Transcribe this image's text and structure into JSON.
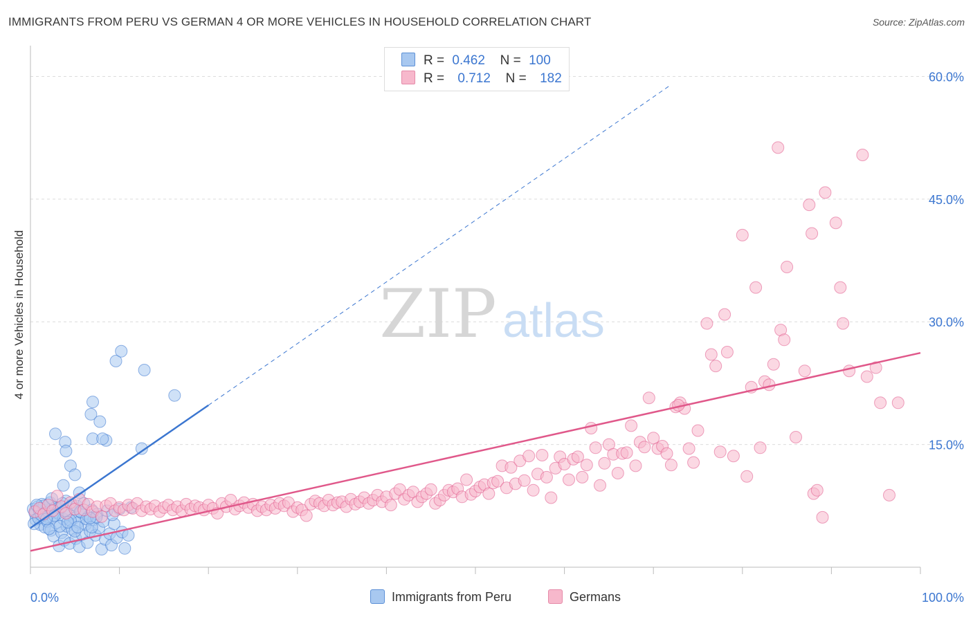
{
  "title": "IMMIGRANTS FROM PERU VS GERMAN 4 OR MORE VEHICLES IN HOUSEHOLD CORRELATION CHART",
  "source": "Source: ZipAtlas.com",
  "watermark": {
    "zip": "ZIP",
    "atlas": "atlas"
  },
  "legend": {
    "rows": [
      {
        "r_label": "R =",
        "r_value": "0.462",
        "n_label": "N =",
        "n_value": "100",
        "color": "#a8c8f0"
      },
      {
        "r_label": "R =",
        "r_value": "0.712",
        "n_label": "N =",
        "n_value": "182",
        "color": "#f7b8cc"
      }
    ]
  },
  "bottom_legend": [
    {
      "label": "Immigrants from Peru",
      "color": "#a8c8f0"
    },
    {
      "label": "Germans",
      "color": "#f7b8cc"
    }
  ],
  "chart_data": {
    "type": "scatter",
    "title": "IMMIGRANTS FROM PERU VS GERMAN 4 OR MORE VEHICLES IN HOUSEHOLD CORRELATION CHART",
    "xlabel": "",
    "ylabel": "4 or more Vehicles in Household",
    "xlim": [
      0,
      100
    ],
    "ylim": [
      0,
      63
    ],
    "x_tick_labels": [
      "0.0%",
      "100.0%"
    ],
    "y_ticks": [
      15,
      30,
      45,
      60
    ],
    "y_tick_labels": [
      "15.0%",
      "30.0%",
      "45.0%",
      "60.0%"
    ],
    "grid": true,
    "legend_position": "top-center",
    "series": [
      {
        "name": "Immigrants from Peru",
        "color": "#3b76d0",
        "fill": "#a8c8f0",
        "trend": {
          "x0": 0,
          "y0": 4.8,
          "x1": 20,
          "y1": 19.8,
          "dashed_to_x": 72,
          "dashed_to_y": 59
        },
        "points": [
          [
            0.3,
            7.1
          ],
          [
            0.5,
            6.6
          ],
          [
            0.6,
            5.8
          ],
          [
            0.8,
            7.4
          ],
          [
            1.0,
            6.9
          ],
          [
            1.1,
            5.2
          ],
          [
            1.3,
            7.7
          ],
          [
            1.4,
            6.3
          ],
          [
            1.6,
            4.9
          ],
          [
            1.7,
            7.0
          ],
          [
            1.9,
            5.6
          ],
          [
            2.0,
            6.8
          ],
          [
            2.2,
            7.9
          ],
          [
            2.3,
            4.5
          ],
          [
            2.5,
            6.1
          ],
          [
            2.6,
            3.8
          ],
          [
            2.8,
            7.3
          ],
          [
            2.9,
            5.4
          ],
          [
            3.1,
            6.6
          ],
          [
            3.2,
            2.6
          ],
          [
            3.4,
            7.2
          ],
          [
            3.5,
            4.2
          ],
          [
            3.7,
            5.9
          ],
          [
            3.8,
            3.3
          ],
          [
            4.0,
            8.1
          ],
          [
            4.1,
            5.0
          ],
          [
            4.3,
            6.4
          ],
          [
            4.4,
            2.9
          ],
          [
            4.6,
            7.6
          ],
          [
            4.7,
            4.6
          ],
          [
            4.9,
            6.0
          ],
          [
            5.1,
            3.5
          ],
          [
            5.2,
            7.5
          ],
          [
            5.4,
            5.5
          ],
          [
            5.5,
            2.5
          ],
          [
            5.7,
            6.7
          ],
          [
            5.8,
            4.0
          ],
          [
            6.0,
            7.8
          ],
          [
            6.2,
            5.2
          ],
          [
            6.4,
            3.0
          ],
          [
            6.5,
            6.2
          ],
          [
            6.7,
            4.4
          ],
          [
            6.9,
            7.0
          ],
          [
            7.1,
            5.8
          ],
          [
            7.3,
            3.9
          ],
          [
            7.5,
            6.5
          ],
          [
            7.7,
            4.8
          ],
          [
            8.0,
            2.2
          ],
          [
            8.2,
            5.6
          ],
          [
            8.4,
            3.4
          ],
          [
            8.6,
            6.9
          ],
          [
            8.9,
            4.1
          ],
          [
            9.1,
            2.7
          ],
          [
            9.4,
            5.3
          ],
          [
            9.7,
            3.6
          ],
          [
            10.0,
            7.1
          ],
          [
            10.3,
            4.3
          ],
          [
            10.6,
            2.3
          ],
          [
            11.0,
            3.9
          ],
          [
            11.3,
            7.3
          ],
          [
            0.4,
            5.3
          ],
          [
            0.9,
            6.0
          ],
          [
            1.5,
            7.5
          ],
          [
            2.1,
            4.7
          ],
          [
            2.7,
            6.3
          ],
          [
            3.3,
            5.0
          ],
          [
            3.9,
            6.9
          ],
          [
            4.5,
            5.7
          ],
          [
            5.0,
            4.4
          ],
          [
            5.6,
            6.8
          ],
          [
            6.3,
            5.9
          ],
          [
            6.9,
            4.9
          ],
          [
            7.4,
            6.1
          ],
          [
            2.4,
            8.4
          ],
          [
            3.6,
            7.8
          ],
          [
            1.2,
            6.4
          ],
          [
            0.7,
            7.6
          ],
          [
            1.8,
            5.9
          ],
          [
            4.2,
            5.5
          ],
          [
            5.3,
            4.9
          ],
          [
            2.8,
            16.3
          ],
          [
            3.9,
            15.3
          ],
          [
            4.0,
            14.2
          ],
          [
            4.5,
            12.4
          ],
          [
            5.0,
            11.3
          ],
          [
            5.5,
            9.1
          ],
          [
            3.7,
            10.0
          ],
          [
            7.0,
            20.2
          ],
          [
            6.8,
            18.7
          ],
          [
            7.0,
            15.7
          ],
          [
            8.5,
            15.5
          ],
          [
            8.1,
            15.7
          ],
          [
            7.8,
            17.8
          ],
          [
            9.6,
            25.2
          ],
          [
            10.2,
            26.4
          ],
          [
            12.8,
            24.1
          ],
          [
            16.2,
            21.0
          ],
          [
            12.5,
            14.5
          ],
          [
            6.7,
            6.0
          ],
          [
            9.2,
            6.4
          ]
        ]
      },
      {
        "name": "Germans",
        "color": "#e0588a",
        "fill": "#f7b8cc",
        "trend": {
          "x0": 0,
          "y0": 2.0,
          "x1": 100,
          "y1": 26.2
        },
        "points": [
          [
            0.5,
            6.8
          ],
          [
            1.0,
            7.2
          ],
          [
            1.5,
            6.5
          ],
          [
            2.0,
            7.6
          ],
          [
            2.5,
            6.9
          ],
          [
            3.0,
            8.7
          ],
          [
            3.5,
            7.4
          ],
          [
            4.0,
            6.6
          ],
          [
            4.5,
            7.9
          ],
          [
            5.0,
            7.1
          ],
          [
            5.5,
            8.3
          ],
          [
            6.0,
            7.0
          ],
          [
            6.5,
            7.7
          ],
          [
            7.0,
            6.8
          ],
          [
            7.5,
            7.4
          ],
          [
            8.0,
            6.2
          ],
          [
            8.5,
            7.5
          ],
          [
            9.0,
            7.8
          ],
          [
            9.5,
            6.9
          ],
          [
            10.0,
            7.3
          ],
          [
            10.5,
            7.0
          ],
          [
            11.0,
            7.6
          ],
          [
            11.5,
            7.2
          ],
          [
            12.0,
            7.8
          ],
          [
            12.5,
            6.9
          ],
          [
            13.0,
            7.4
          ],
          [
            13.5,
            7.1
          ],
          [
            14.0,
            7.5
          ],
          [
            14.5,
            6.8
          ],
          [
            15.0,
            7.3
          ],
          [
            15.5,
            7.6
          ],
          [
            16.0,
            7.0
          ],
          [
            16.5,
            7.4
          ],
          [
            17.0,
            6.9
          ],
          [
            17.5,
            7.7
          ],
          [
            18.0,
            7.1
          ],
          [
            18.5,
            7.5
          ],
          [
            19.0,
            7.3
          ],
          [
            19.5,
            7.0
          ],
          [
            20.0,
            7.6
          ],
          [
            20.5,
            7.2
          ],
          [
            21.0,
            6.6
          ],
          [
            21.5,
            7.8
          ],
          [
            22.0,
            7.4
          ],
          [
            22.5,
            8.2
          ],
          [
            23.0,
            7.1
          ],
          [
            23.5,
            7.5
          ],
          [
            24.0,
            7.9
          ],
          [
            24.5,
            7.3
          ],
          [
            25.0,
            7.7
          ],
          [
            25.5,
            6.9
          ],
          [
            26.0,
            7.4
          ],
          [
            26.5,
            7.0
          ],
          [
            27.0,
            7.6
          ],
          [
            27.5,
            7.2
          ],
          [
            28.0,
            7.8
          ],
          [
            28.5,
            7.5
          ],
          [
            29.0,
            7.9
          ],
          [
            29.5,
            6.8
          ],
          [
            30.0,
            7.3
          ],
          [
            30.5,
            7.0
          ],
          [
            31.0,
            6.3
          ],
          [
            31.5,
            7.7
          ],
          [
            32.0,
            8.1
          ],
          [
            32.5,
            7.8
          ],
          [
            33.0,
            7.5
          ],
          [
            33.5,
            8.2
          ],
          [
            34.0,
            7.6
          ],
          [
            34.5,
            7.9
          ],
          [
            35.0,
            8.0
          ],
          [
            35.5,
            7.4
          ],
          [
            36.0,
            8.3
          ],
          [
            36.5,
            7.7
          ],
          [
            37.0,
            8.0
          ],
          [
            37.5,
            8.5
          ],
          [
            38.0,
            7.8
          ],
          [
            38.5,
            8.2
          ],
          [
            39.0,
            8.8
          ],
          [
            39.5,
            8.0
          ],
          [
            40.0,
            8.6
          ],
          [
            40.5,
            7.6
          ],
          [
            41.0,
            9.0
          ],
          [
            41.5,
            9.5
          ],
          [
            42.0,
            8.3
          ],
          [
            42.5,
            8.8
          ],
          [
            43.0,
            9.2
          ],
          [
            43.5,
            8.0
          ],
          [
            44.0,
            8.6
          ],
          [
            44.5,
            9.0
          ],
          [
            45.0,
            9.5
          ],
          [
            45.5,
            7.8
          ],
          [
            46.0,
            8.2
          ],
          [
            46.5,
            8.8
          ],
          [
            47.0,
            9.4
          ],
          [
            47.5,
            9.2
          ],
          [
            48.0,
            9.6
          ],
          [
            48.5,
            8.6
          ],
          [
            49.0,
            10.7
          ],
          [
            49.5,
            8.9
          ],
          [
            50.0,
            9.3
          ],
          [
            50.5,
            9.8
          ],
          [
            51.0,
            10.1
          ],
          [
            51.5,
            9.0
          ],
          [
            52.0,
            10.3
          ],
          [
            52.5,
            10.5
          ],
          [
            53.0,
            12.4
          ],
          [
            53.5,
            9.7
          ],
          [
            54.0,
            12.2
          ],
          [
            54.5,
            10.2
          ],
          [
            55.0,
            13.0
          ],
          [
            55.5,
            10.6
          ],
          [
            56.0,
            13.6
          ],
          [
            56.5,
            9.4
          ],
          [
            57.0,
            11.4
          ],
          [
            57.5,
            13.7
          ],
          [
            58.0,
            11.0
          ],
          [
            58.5,
            8.5
          ],
          [
            59.0,
            12.1
          ],
          [
            59.5,
            13.5
          ],
          [
            60.0,
            12.6
          ],
          [
            60.5,
            10.7
          ],
          [
            61.0,
            13.2
          ],
          [
            61.5,
            13.5
          ],
          [
            62.0,
            11.0
          ],
          [
            62.5,
            12.5
          ],
          [
            63.0,
            17.0
          ],
          [
            63.5,
            14.6
          ],
          [
            64.0,
            10.0
          ],
          [
            64.5,
            12.7
          ],
          [
            65.0,
            15.0
          ],
          [
            65.5,
            13.8
          ],
          [
            66.0,
            11.5
          ],
          [
            66.5,
            13.9
          ],
          [
            67.0,
            14.0
          ],
          [
            67.5,
            17.3
          ],
          [
            68.0,
            12.4
          ],
          [
            68.5,
            15.3
          ],
          [
            69.0,
            14.7
          ],
          [
            69.5,
            20.7
          ],
          [
            70.0,
            15.8
          ],
          [
            70.5,
            14.5
          ],
          [
            71.0,
            14.8
          ],
          [
            71.5,
            13.9
          ],
          [
            72.0,
            12.5
          ],
          [
            72.5,
            19.6
          ],
          [
            73.0,
            20.1
          ],
          [
            73.5,
            19.4
          ],
          [
            74.0,
            14.5
          ],
          [
            74.5,
            12.8
          ],
          [
            75.0,
            16.7
          ],
          [
            76.0,
            29.8
          ],
          [
            76.5,
            26.0
          ],
          [
            77.0,
            24.6
          ],
          [
            77.5,
            14.1
          ],
          [
            78.0,
            30.9
          ],
          [
            78.3,
            26.3
          ],
          [
            79.0,
            13.6
          ],
          [
            80.0,
            40.6
          ],
          [
            80.5,
            11.1
          ],
          [
            81.0,
            22.0
          ],
          [
            81.5,
            34.2
          ],
          [
            82.0,
            14.6
          ],
          [
            82.5,
            22.7
          ],
          [
            83.0,
            22.3
          ],
          [
            83.5,
            24.8
          ],
          [
            84.0,
            51.3
          ],
          [
            84.3,
            29.0
          ],
          [
            84.7,
            27.8
          ],
          [
            85.0,
            36.7
          ],
          [
            86.0,
            15.9
          ],
          [
            87.0,
            24.0
          ],
          [
            87.5,
            44.3
          ],
          [
            87.8,
            40.8
          ],
          [
            88.0,
            9.0
          ],
          [
            88.4,
            9.4
          ],
          [
            89.0,
            6.1
          ],
          [
            89.3,
            45.8
          ],
          [
            90.5,
            42.1
          ],
          [
            91.0,
            34.2
          ],
          [
            91.3,
            29.8
          ],
          [
            92.0,
            24.0
          ],
          [
            93.5,
            50.4
          ],
          [
            94.0,
            23.3
          ],
          [
            95.0,
            24.4
          ],
          [
            95.5,
            20.1
          ],
          [
            96.5,
            8.8
          ],
          [
            97.5,
            20.1
          ],
          [
            72.8,
            19.8
          ]
        ]
      }
    ]
  }
}
